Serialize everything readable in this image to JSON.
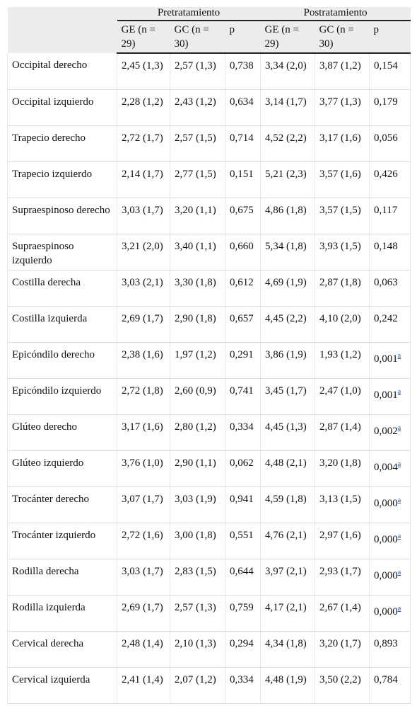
{
  "table": {
    "groups": [
      "Pretratamiento",
      "Postratamiento"
    ],
    "subheaders": [
      "GE (n = 29)",
      "GC (n = 30)",
      "p",
      "GE (n = 29)",
      "GC (n = 30)",
      "p"
    ],
    "rows": [
      {
        "label": "Occipital derecho",
        "cells": [
          "2,45 (1,3)",
          "2,57 (1,3)",
          "0,738",
          "3,34 (2,0)",
          "3,87 (1,2)",
          "0,154"
        ]
      },
      {
        "label": "Occipital izquierdo",
        "cells": [
          "2,28 (1,2)",
          "2,43 (1,2)",
          "0,634",
          "3,14 (1,7)",
          "3,77 (1,3)",
          "0,179"
        ]
      },
      {
        "label": "Trapecio derecho",
        "cells": [
          "2,72 (1,7)",
          "2,57 (1,5)",
          "0,714",
          "4,52 (2,2)",
          "3,17 (1,6)",
          "0,056"
        ]
      },
      {
        "label": "Trapecio izquierdo",
        "cells": [
          "2,14 (1,7)",
          "2,77 (1,5)",
          "0,151",
          "5,21 (2,3)",
          "3,57 (1,6)",
          "0,426"
        ]
      },
      {
        "label": "Supraespinoso derecho",
        "cells": [
          "3,03 (1,7)",
          "3,20 (1,1)",
          "0,675",
          "4,86 (1,8)",
          "3,57 (1,5)",
          "0,117"
        ]
      },
      {
        "label": "Supraespinoso izquierdo",
        "cells": [
          "3,21 (2,0)",
          "3,40 (1,1)",
          "0,660",
          "5,34 (1,8)",
          "3,93 (1,5)",
          "0,148"
        ]
      },
      {
        "label": "Costilla derecha",
        "cells": [
          "3,03 (2,1)",
          "3,30 (1,8)",
          "0,612",
          "4,69 (1,9)",
          "2,87 (1,8)",
          "0,063"
        ]
      },
      {
        "label": "Costilla izquierda",
        "cells": [
          "2,69 (1,7)",
          "2,90 (1,8)",
          "0,657",
          "4,45 (2,2)",
          "4,10 (2,0)",
          "0,242"
        ]
      },
      {
        "label": "Epicóndilo derecho",
        "cells": [
          "2,38 (1,6)",
          "1,97 (1,2)",
          "0,291",
          "3,86 (1,9)",
          "1,93 (1,2)",
          "0,001"
        ],
        "note": "a"
      },
      {
        "label": "Epicóndilo izquierdo",
        "cells": [
          "2,72 (1,8)",
          "2,60 (0,9)",
          "0,741",
          "3,45 (1,7)",
          "2,47 (1,0)",
          "0,001"
        ],
        "note": "a"
      },
      {
        "label": "Glúteo derecho",
        "cells": [
          "3,17 (1,6)",
          "2,80 (1,2)",
          "0,334",
          "4,45 (1,3)",
          "2,87 (1,4)",
          "0,002"
        ],
        "note": "a"
      },
      {
        "label": "Glúteo izquierdo",
        "cells": [
          "3,76 (1,0)",
          "2,90 (1,1)",
          "0,062",
          "4,48 (2,1)",
          "3,20 (1,8)",
          "0,004"
        ],
        "note": "a"
      },
      {
        "label": "Trocánter derecho",
        "cells": [
          "3,07 (1,7)",
          "3,03 (1,9)",
          "0,941",
          "4,59 (1,8)",
          "3,13 (1,5)",
          "0,000"
        ],
        "note": "a"
      },
      {
        "label": "Trocánter izquierdo",
        "cells": [
          "2,72 (1,6)",
          "3,00 (1,8)",
          "0,551",
          "4,76 (2,1)",
          "2,97 (1,6)",
          "0,000"
        ],
        "note": "a"
      },
      {
        "label": "Rodilla derecha",
        "cells": [
          "3,03 (1,7)",
          "2,83 (1,5)",
          "0,644",
          "3,97 (2,1)",
          "2,93 (1,7)",
          "0,000"
        ],
        "note": "a"
      },
      {
        "label": "Rodilla izquierda",
        "cells": [
          "2,69 (1,7)",
          "2,57 (1,3)",
          "0,759",
          "4,17 (2,1)",
          "2,67 (1,4)",
          "0,000"
        ],
        "note": "a"
      },
      {
        "label": "Cervical derecha",
        "cells": [
          "2,48 (1,4)",
          "2,10 (1,3)",
          "0,294",
          "4,34 (1,8)",
          "3,20 (1,7)",
          "0,893"
        ]
      },
      {
        "label": "Cervical izquierda",
        "cells": [
          "2,41 (1,4)",
          "2,07 (1,2)",
          "0,334",
          "4,48 (1,9)",
          "3,50 (2,2)",
          "0,784"
        ]
      }
    ]
  }
}
